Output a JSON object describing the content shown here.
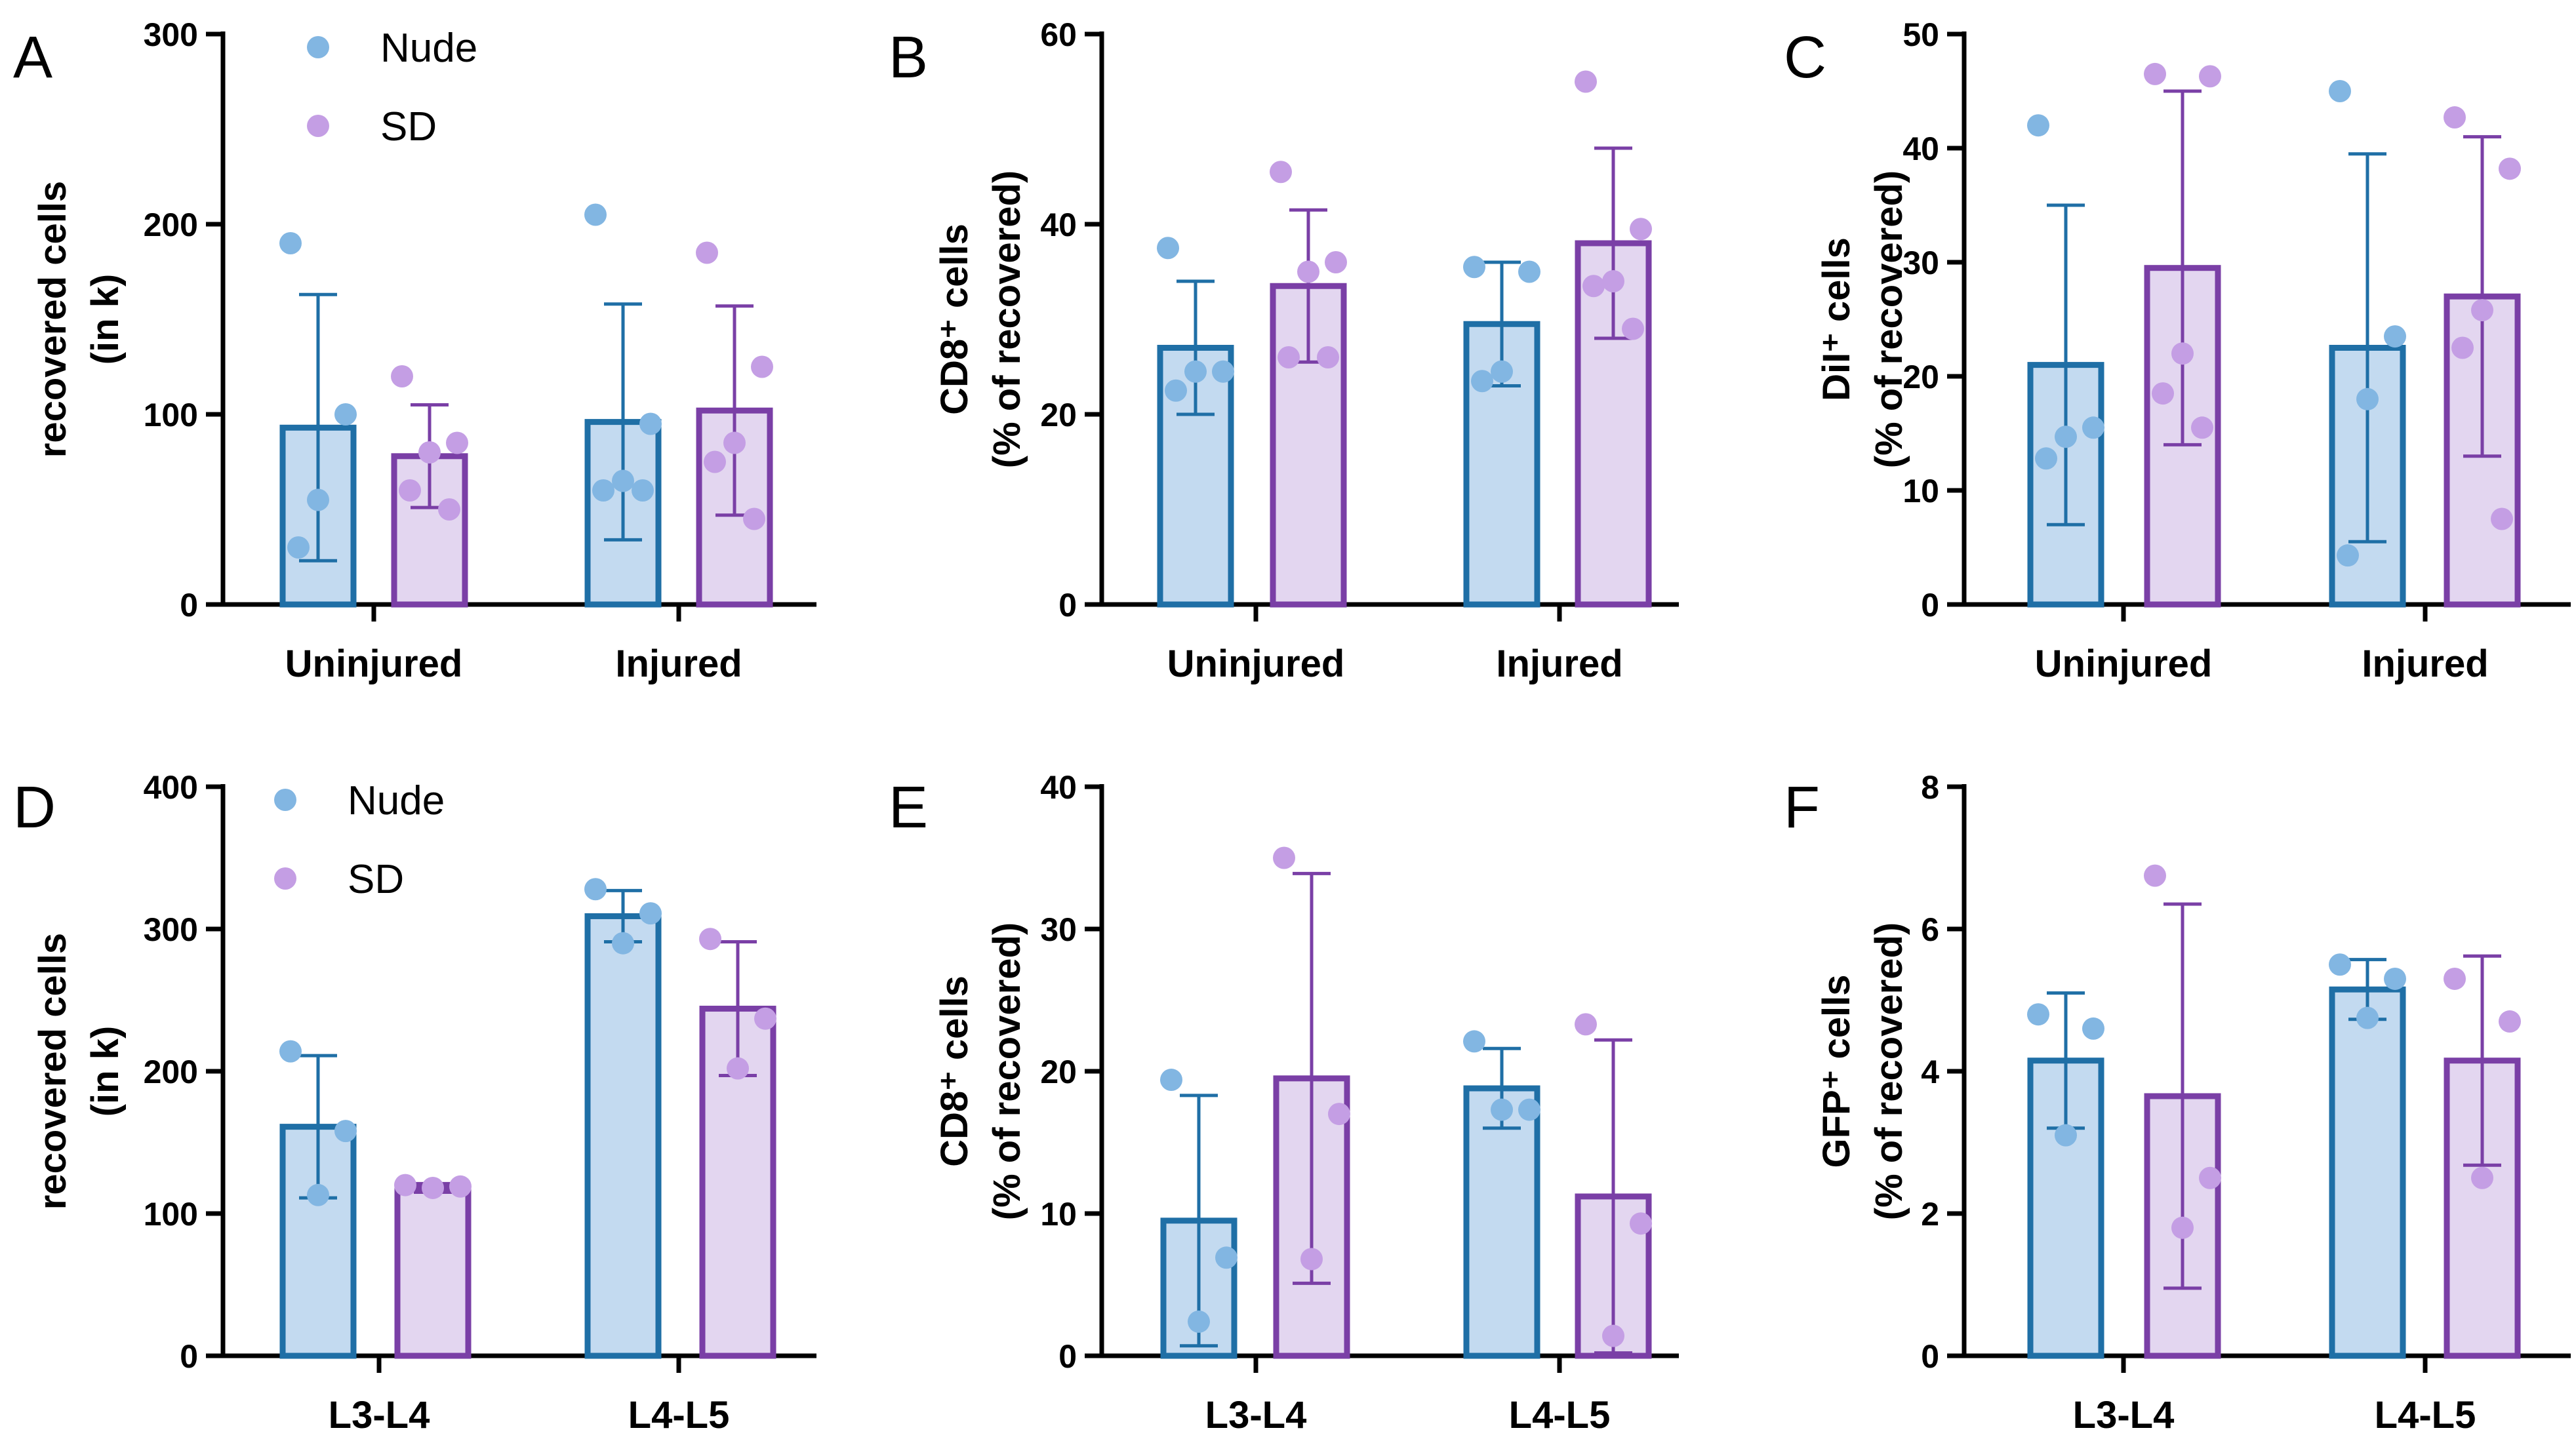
{
  "colors": {
    "nude_fill": "#c3daf0",
    "nude_stroke": "#1f6fa6",
    "nude_point": "#82b6e2",
    "sd_fill": "#e3d6f0",
    "sd_stroke": "#7a3fa6",
    "sd_point": "#c49ee4",
    "axis": "#000000"
  },
  "legend": {
    "nude": "Nude",
    "sd": "SD"
  },
  "chart_data": [
    {
      "panel": "A",
      "type": "bar",
      "ylabel_lines": [
        "recovered cells",
        "(in k)"
      ],
      "ylim": [
        0,
        300
      ],
      "yticks": [
        "0",
        "100",
        "200",
        "300"
      ],
      "categories": [
        "Uninjured",
        "Injured"
      ],
      "legend": true,
      "series": [
        {
          "name": "Nude",
          "values": [
            93,
            96
          ],
          "sd": [
            70,
            62
          ],
          "points": [
            [
              190,
              100,
              55,
              30
            ],
            [
              205,
              95,
              65,
              60,
              60
            ]
          ]
        },
        {
          "name": "SD",
          "values": [
            78,
            102
          ],
          "sd": [
            27,
            55
          ],
          "points": [
            [
              120,
              85,
              80,
              60,
              50
            ],
            [
              185,
              125,
              85,
              75,
              45
            ]
          ]
        }
      ]
    },
    {
      "panel": "B",
      "type": "bar",
      "ylabel_lines": [
        "CD8⁺ cells",
        "(% of recovered)"
      ],
      "ylim": [
        0,
        60
      ],
      "yticks": [
        "0",
        "20",
        "40",
        "60"
      ],
      "categories": [
        "Uninjured",
        "Injured"
      ],
      "legend": false,
      "series": [
        {
          "name": "Nude",
          "values": [
            27,
            29.5
          ],
          "sd": [
            7,
            6.5
          ],
          "points": [
            [
              37.5,
              24.5,
              24.5,
              22.5
            ],
            [
              35.5,
              35,
              24.5,
              23.5
            ]
          ]
        },
        {
          "name": "SD",
          "values": [
            33.5,
            38
          ],
          "sd": [
            8,
            10
          ],
          "points": [
            [
              45.5,
              36,
              35,
              26,
              26
            ],
            [
              55,
              39.5,
              34,
              33.5,
              29
            ]
          ]
        }
      ]
    },
    {
      "panel": "C",
      "type": "bar",
      "ylabel_lines": [
        "DiI⁺ cells",
        "(% of recovered)"
      ],
      "ylim": [
        0,
        50
      ],
      "yticks": [
        "0",
        "10",
        "20",
        "30",
        "40",
        "50"
      ],
      "categories": [
        "Uninjured",
        "Injured"
      ],
      "legend": false,
      "series": [
        {
          "name": "Nude",
          "values": [
            21,
            22.5
          ],
          "sd": [
            14,
            17
          ],
          "points": [
            [
              42,
              15.5,
              14.7,
              12.8
            ],
            [
              45,
              23.5,
              18,
              4.3
            ]
          ]
        },
        {
          "name": "SD",
          "values": [
            29.5,
            27
          ],
          "sd": [
            15.5,
            14
          ],
          "points": [
            [
              46.5,
              46.3,
              22,
              18.5,
              15.5
            ],
            [
              42.7,
              38.2,
              25.8,
              22.5,
              7.5
            ]
          ]
        }
      ]
    },
    {
      "panel": "D",
      "type": "bar",
      "ylabel_lines": [
        "recovered cells",
        "(in k)"
      ],
      "ylim": [
        0,
        400
      ],
      "yticks": [
        "0",
        "100",
        "200",
        "300",
        "400"
      ],
      "categories": [
        "L3-L4",
        "L4-L5"
      ],
      "legend": true,
      "series": [
        {
          "name": "Nude",
          "values": [
            161,
            309
          ],
          "sd": [
            50,
            18
          ],
          "points": [
            [
              214,
              158,
              113
            ],
            [
              328,
              311,
              290
            ]
          ]
        },
        {
          "name": "SD",
          "values": [
            118,
            244
          ],
          "sd": [
            3,
            47
          ],
          "points": [
            [
              120,
              119,
              118
            ],
            [
              293,
              237,
              202
            ]
          ]
        }
      ]
    },
    {
      "panel": "E",
      "type": "bar",
      "ylabel_lines": [
        "CD8⁺ cells",
        "(% of recovered)"
      ],
      "ylim": [
        0,
        40
      ],
      "yticks": [
        "0",
        "10",
        "20",
        "30",
        "40"
      ],
      "categories": [
        "L3-L4",
        "L4-L5"
      ],
      "legend": false,
      "series": [
        {
          "name": "Nude",
          "values": [
            9.5,
            18.8
          ],
          "sd": [
            8.8,
            2.8
          ],
          "points": [
            [
              19.4,
              6.9,
              2.4
            ],
            [
              22.1,
              17.3,
              17.3
            ]
          ]
        },
        {
          "name": "SD",
          "values": [
            19.5,
            11.2
          ],
          "sd": [
            14.4,
            11
          ],
          "points": [
            [
              35,
              17,
              6.8
            ],
            [
              23.3,
              9.3,
              1.4
            ]
          ]
        }
      ]
    },
    {
      "panel": "F",
      "type": "bar",
      "ylabel_lines": [
        "GFP⁺ cells",
        "(% of recovered)"
      ],
      "ylim": [
        0,
        8
      ],
      "yticks": [
        "0",
        "2",
        "4",
        "6",
        "8"
      ],
      "categories": [
        "L3-L4",
        "L4-L5"
      ],
      "legend": false,
      "series": [
        {
          "name": "Nude",
          "values": [
            4.15,
            5.15
          ],
          "sd": [
            0.95,
            0.42
          ],
          "points": [
            [
              4.8,
              4.6,
              3.1
            ],
            [
              5.5,
              5.3,
              4.75
            ]
          ]
        },
        {
          "name": "SD",
          "values": [
            3.65,
            4.15
          ],
          "sd": [
            2.7,
            1.47
          ],
          "points": [
            [
              6.75,
              2.5,
              1.8
            ],
            [
              5.3,
              4.7,
              2.5
            ]
          ]
        }
      ]
    }
  ]
}
